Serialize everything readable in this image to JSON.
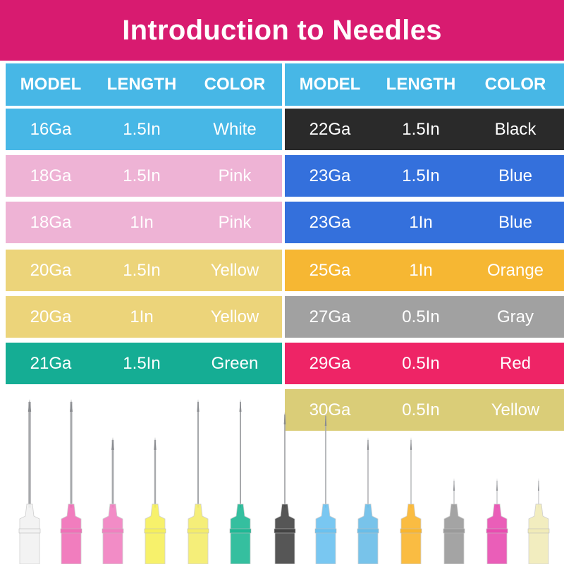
{
  "title": "Introduction to Needles",
  "colors": {
    "header_bg": "#d81b70",
    "table_header_bg": "#47b7e6"
  },
  "tables": [
    {
      "headers": [
        "MODEL",
        "LENGTH",
        "COLOR"
      ],
      "rows": [
        {
          "model": "16Ga",
          "length": "1.5In",
          "color": "White",
          "bg": "#47b7e6",
          "fg": "#ffffff"
        },
        {
          "model": "18Ga",
          "length": "1.5In",
          "color": "Pink",
          "bg": "#eeb3d5",
          "fg": "#ffffff"
        },
        {
          "model": "18Ga",
          "length": "1In",
          "color": "Pink",
          "bg": "#eeb3d5",
          "fg": "#ffffff"
        },
        {
          "model": "20Ga",
          "length": "1.5In",
          "color": "Yellow",
          "bg": "#ecd47a",
          "fg": "#ffffff"
        },
        {
          "model": "20Ga",
          "length": "1In",
          "color": "Yellow",
          "bg": "#ecd47a",
          "fg": "#ffffff"
        },
        {
          "model": "21Ga",
          "length": "1.5In",
          "color": "Green",
          "bg": "#15ad94",
          "fg": "#ffffff"
        }
      ]
    },
    {
      "headers": [
        "MODEL",
        "LENGTH",
        "COLOR"
      ],
      "rows": [
        {
          "model": "22Ga",
          "length": "1.5In",
          "color": "Black",
          "bg": "#2a2a2a",
          "fg": "#ffffff"
        },
        {
          "model": "23Ga",
          "length": "1.5In",
          "color": "Blue",
          "bg": "#3470dc",
          "fg": "#ffffff"
        },
        {
          "model": "23Ga",
          "length": "1In",
          "color": "Blue",
          "bg": "#3470dc",
          "fg": "#ffffff"
        },
        {
          "model": "25Ga",
          "length": "1In",
          "color": "Orange",
          "bg": "#f6b733",
          "fg": "#ffffff"
        },
        {
          "model": "27Ga",
          "length": "0.5In",
          "color": "Gray",
          "bg": "#a1a1a1",
          "fg": "#ffffff"
        },
        {
          "model": "29Ga",
          "length": "0.5In",
          "color": "Red",
          "bg": "#ee2466",
          "fg": "#ffffff"
        },
        {
          "model": "30Ga",
          "length": "0.5In",
          "color": "Yellow",
          "bg": "#dacd78",
          "fg": "#ffffff"
        }
      ]
    }
  ],
  "needles": [
    {
      "hub_color": "#f2f2f2"
    },
    {
      "hub_color": "#f06fb7"
    },
    {
      "hub_color": "#f17fc0"
    },
    {
      "hub_color": "#f6ef5b"
    },
    {
      "hub_color": "#f4ec6a"
    },
    {
      "hub_color": "#1fb895"
    },
    {
      "hub_color": "#444444"
    },
    {
      "hub_color": "#6ac1ef"
    },
    {
      "hub_color": "#69bde8"
    },
    {
      "hub_color": "#f9b52e"
    },
    {
      "hub_color": "#9a9a9a"
    },
    {
      "hub_color": "#e84cb0"
    },
    {
      "hub_color": "#f1ebb8"
    }
  ]
}
